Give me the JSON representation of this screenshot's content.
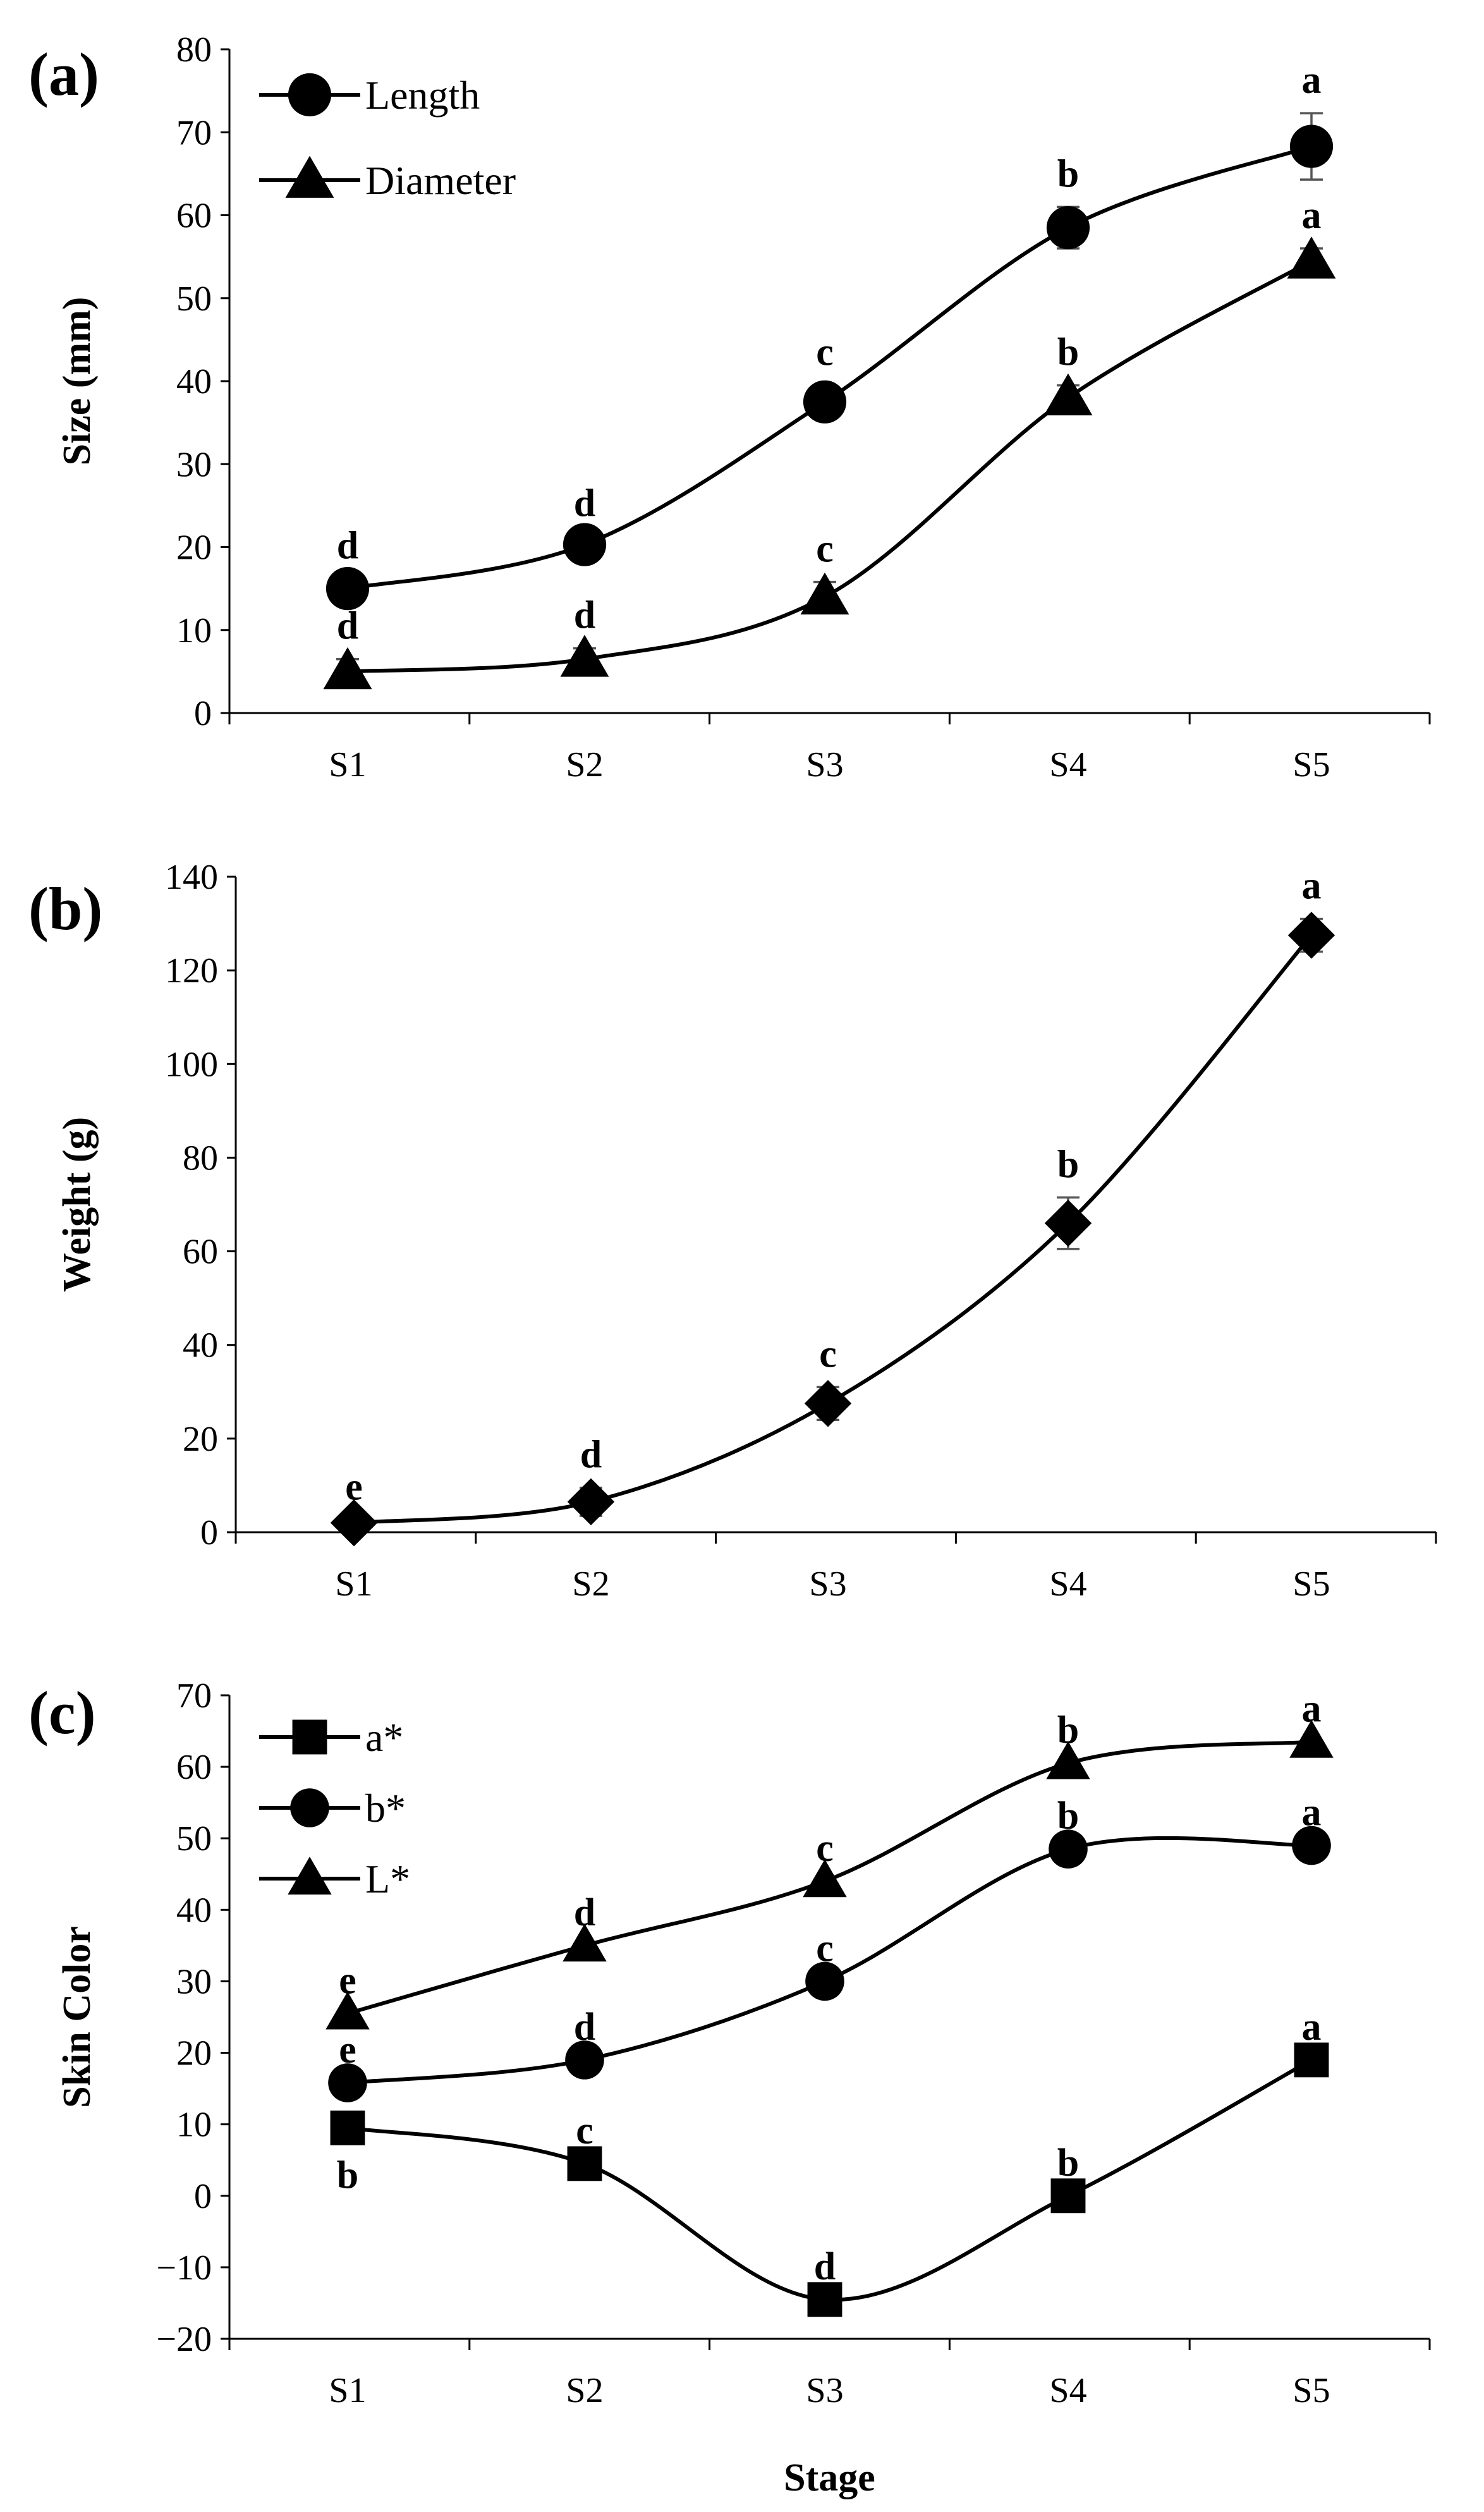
{
  "chart_data": [
    {
      "panel": "(a)",
      "type": "line",
      "categories": [
        "S1",
        "S2",
        "S3",
        "S4",
        "S5"
      ],
      "ylabel": "Size (mm)",
      "xlabel": "",
      "ylim": [
        0,
        80
      ],
      "yticks": [
        0,
        10,
        20,
        30,
        40,
        50,
        60,
        70,
        80
      ],
      "legend_position": "top-left",
      "series": [
        {
          "name": "Length",
          "marker": "circle",
          "values": [
            15,
            20.3,
            37.5,
            58.5,
            68.3
          ],
          "errors": [
            1.2,
            1.0,
            2.0,
            2.5,
            4.0
          ],
          "sig": [
            "d",
            "d",
            "c",
            "b",
            "a"
          ],
          "sig_pos": [
            "above",
            "above",
            "above",
            "above",
            "above"
          ]
        },
        {
          "name": "Diameter",
          "marker": "triangle",
          "values": [
            5,
            6.5,
            14,
            38,
            54.5
          ],
          "errors": [
            1.5,
            1.3,
            1.8,
            1.5,
            1.5
          ],
          "sig": [
            "d",
            "d",
            "c",
            "b",
            "a"
          ],
          "sig_pos": [
            "above",
            "above",
            "above",
            "above",
            "above"
          ]
        }
      ]
    },
    {
      "panel": "(b)",
      "type": "line",
      "categories": [
        "S1",
        "S2",
        "S3",
        "S4",
        "S5"
      ],
      "ylabel": "Weight (g)",
      "xlabel": "",
      "ylim": [
        0,
        140
      ],
      "yticks": [
        0,
        20,
        40,
        60,
        80,
        100,
        120,
        140
      ],
      "legend_position": "none",
      "series": [
        {
          "name": "Weight",
          "marker": "diamond",
          "values": [
            2,
            6.5,
            27.5,
            66,
            127.5
          ],
          "errors": [
            0.6,
            3.0,
            3.5,
            5.5,
            3.5
          ],
          "sig": [
            "e",
            "d",
            "c",
            "b",
            "a"
          ],
          "sig_pos": [
            "above",
            "above",
            "above",
            "above",
            "above"
          ]
        }
      ]
    },
    {
      "panel": "(c)",
      "type": "line",
      "categories": [
        "S1",
        "S2",
        "S3",
        "S4",
        "S5"
      ],
      "ylabel": "Skin Color",
      "xlabel": "Stage",
      "ylim": [
        -20,
        70
      ],
      "yticks": [
        -20,
        -10,
        0,
        10,
        20,
        30,
        40,
        50,
        60,
        70
      ],
      "legend_position": "top-left",
      "series": [
        {
          "name": "a*",
          "marker": "square",
          "values": [
            9.5,
            4.5,
            -14.5,
            0,
            19
          ],
          "errors": [
            0,
            0,
            0,
            0,
            0
          ],
          "sig": [
            "b",
            "c",
            "d",
            "b",
            "a"
          ],
          "sig_pos": [
            "below",
            "above",
            "above",
            "above",
            "above"
          ]
        },
        {
          "name": "b*",
          "marker": "circle",
          "values": [
            15.8,
            19,
            30,
            48.5,
            49
          ],
          "errors": [
            0,
            0,
            0,
            0,
            0
          ],
          "sig": [
            "e",
            "d",
            "c",
            "b",
            "a"
          ],
          "sig_pos": [
            "above",
            "above",
            "above",
            "above",
            "above"
          ]
        },
        {
          "name": "L*",
          "marker": "triangle",
          "values": [
            25.5,
            35,
            44,
            60.5,
            63.5
          ],
          "errors": [
            0,
            0,
            0,
            0,
            0
          ],
          "sig": [
            "e",
            "d",
            "c",
            "b",
            "a"
          ],
          "sig_pos": [
            "above",
            "above",
            "above",
            "above",
            "above"
          ]
        }
      ]
    }
  ]
}
